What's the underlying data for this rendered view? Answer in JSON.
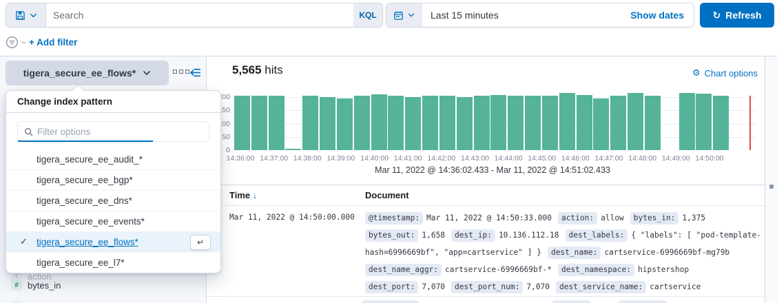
{
  "query_bar": {
    "search_placeholder": "Search",
    "query_language_badge": "KQL",
    "time_range_value": "Last 15 minutes",
    "show_dates_label": "Show dates",
    "refresh_label": "Refresh"
  },
  "filter_bar": {
    "add_filter_label": "+ Add filter"
  },
  "sidebar": {
    "index_pattern_button_label": "tigera_secure_ee_flows*",
    "fields": [
      {
        "name": "action",
        "type": "t"
      },
      {
        "name": "bytes_in",
        "type": "#"
      }
    ]
  },
  "index_pattern_popover": {
    "title": "Change index pattern",
    "filter_placeholder": "Filter options",
    "options": [
      {
        "label": "tigera_secure_ee_audit_*",
        "selected": false
      },
      {
        "label": "tigera_secure_ee_bgp*",
        "selected": false
      },
      {
        "label": "tigera_secure_ee_dns*",
        "selected": false
      },
      {
        "label": "tigera_secure_ee_events*",
        "selected": false
      },
      {
        "label": "tigera_secure_ee_flows*",
        "selected": true
      },
      {
        "label": "tigera_secure_ee_l7*",
        "selected": false
      }
    ]
  },
  "results_header": {
    "hits_count": "5,565",
    "hits_label": "hits",
    "chart_options_label": "Chart options"
  },
  "chart_data": {
    "type": "bar",
    "title": "",
    "x_interval": "30s",
    "x": [
      "14:36:00",
      "14:36:30",
      "14:37:00",
      "14:37:30",
      "14:38:00",
      "14:38:30",
      "14:39:00",
      "14:39:30",
      "14:40:00",
      "14:40:30",
      "14:41:00",
      "14:41:30",
      "14:42:00",
      "14:42:30",
      "14:43:00",
      "14:43:30",
      "14:44:00",
      "14:44:30",
      "14:45:00",
      "14:45:30",
      "14:46:00",
      "14:46:30",
      "14:47:00",
      "14:47:30",
      "14:48:00",
      "14:48:30",
      "14:49:00",
      "14:49:30",
      "14:50:00"
    ],
    "values": [
      205,
      205,
      205,
      5,
      205,
      200,
      195,
      205,
      210,
      205,
      200,
      205,
      205,
      200,
      205,
      207,
      205,
      205,
      205,
      215,
      207,
      195,
      205,
      215,
      205,
      0,
      215,
      212,
      205
    ],
    "x_tick_labels": [
      "14:36:00",
      "14:37:00",
      "14:38:00",
      "14:39:00",
      "14:40:00",
      "14:41:00",
      "14:42:00",
      "14:43:00",
      "14:44:00",
      "14:45:00",
      "14:46:00",
      "14:47:00",
      "14:48:00",
      "14:49:00",
      "14:50:00"
    ],
    "yticks": [
      0,
      50,
      100,
      150,
      200
    ],
    "ylim": [
      0,
      215
    ],
    "grid": true,
    "legend": "off",
    "bar_color": "#54B399",
    "current_time_marker_color": "#DB4A42",
    "time_range_label": "Mar 11, 2022 @ 14:36:02.433 - Mar 11, 2022 @ 14:51:02.433"
  },
  "table": {
    "time_column": "Time",
    "document_column": "Document",
    "rows": [
      {
        "time": "Mar 11, 2022 @ 14:50:00.000",
        "fields": [
          {
            "name": "@timestamp",
            "value": "Mar 11, 2022 @ 14:50:33.000"
          },
          {
            "name": "action",
            "value": "allow"
          },
          {
            "name": "bytes_in",
            "value": "1,375"
          },
          {
            "name": "bytes_out",
            "value": "1,658"
          },
          {
            "name": "dest_ip",
            "value": "10.136.112.18"
          },
          {
            "name": "dest_labels",
            "value": "{ \"labels\": [ \"pod-template-hash=6996669bf\", \"app=cartservice\" ] }"
          },
          {
            "name": "dest_name",
            "value": "cartservice-6996669bf-mg79b"
          },
          {
            "name": "dest_name_aggr",
            "value": "cartservice-6996669bf-*"
          },
          {
            "name": "dest_namespace",
            "value": "hipstershop"
          },
          {
            "name": "dest_port",
            "value": "7,070"
          },
          {
            "name": "dest_port_num",
            "value": "7,070"
          },
          {
            "name": "dest_service_name",
            "value": "cartservice"
          }
        ]
      }
    ]
  }
}
